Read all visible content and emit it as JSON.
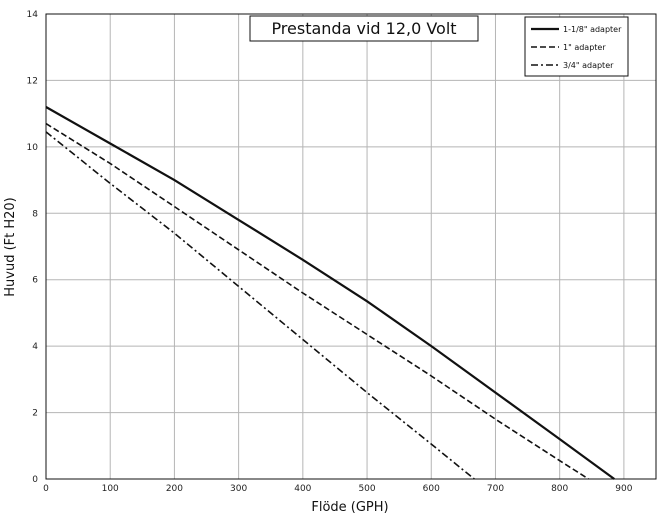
{
  "chart_data": {
    "type": "line",
    "title": "Prestanda vid 12,0 Volt",
    "xlabel": "Flöde (GPH)",
    "ylabel": "Huvud (Ft H20)",
    "xlim": [
      0,
      950
    ],
    "ylim": [
      0,
      14
    ],
    "xticks": [
      0,
      100,
      200,
      300,
      400,
      500,
      600,
      700,
      800,
      900
    ],
    "yticks": [
      0,
      2,
      4,
      6,
      8,
      10,
      12,
      14
    ],
    "grid": true,
    "legend_position": "top-right",
    "series": [
      {
        "name": "1-1/8\" adapter",
        "dash": "solid",
        "x": [
          0,
          100,
          200,
          300,
          400,
          500,
          600,
          700,
          800,
          885
        ],
        "y": [
          11.2,
          10.1,
          9.0,
          7.8,
          6.6,
          5.35,
          4.0,
          2.6,
          1.2,
          0
        ]
      },
      {
        "name": "1\" adapter",
        "dash": "dashed",
        "x": [
          0,
          100,
          200,
          300,
          400,
          500,
          600,
          700,
          800,
          845
        ],
        "y": [
          10.7,
          9.5,
          8.2,
          6.9,
          5.6,
          4.35,
          3.1,
          1.8,
          0.55,
          0
        ]
      },
      {
        "name": "3/4\" adapter",
        "dash": "dashdot",
        "x": [
          0,
          100,
          200,
          300,
          400,
          500,
          600,
          667
        ],
        "y": [
          10.45,
          8.9,
          7.4,
          5.8,
          4.2,
          2.6,
          1.05,
          0
        ]
      }
    ]
  }
}
